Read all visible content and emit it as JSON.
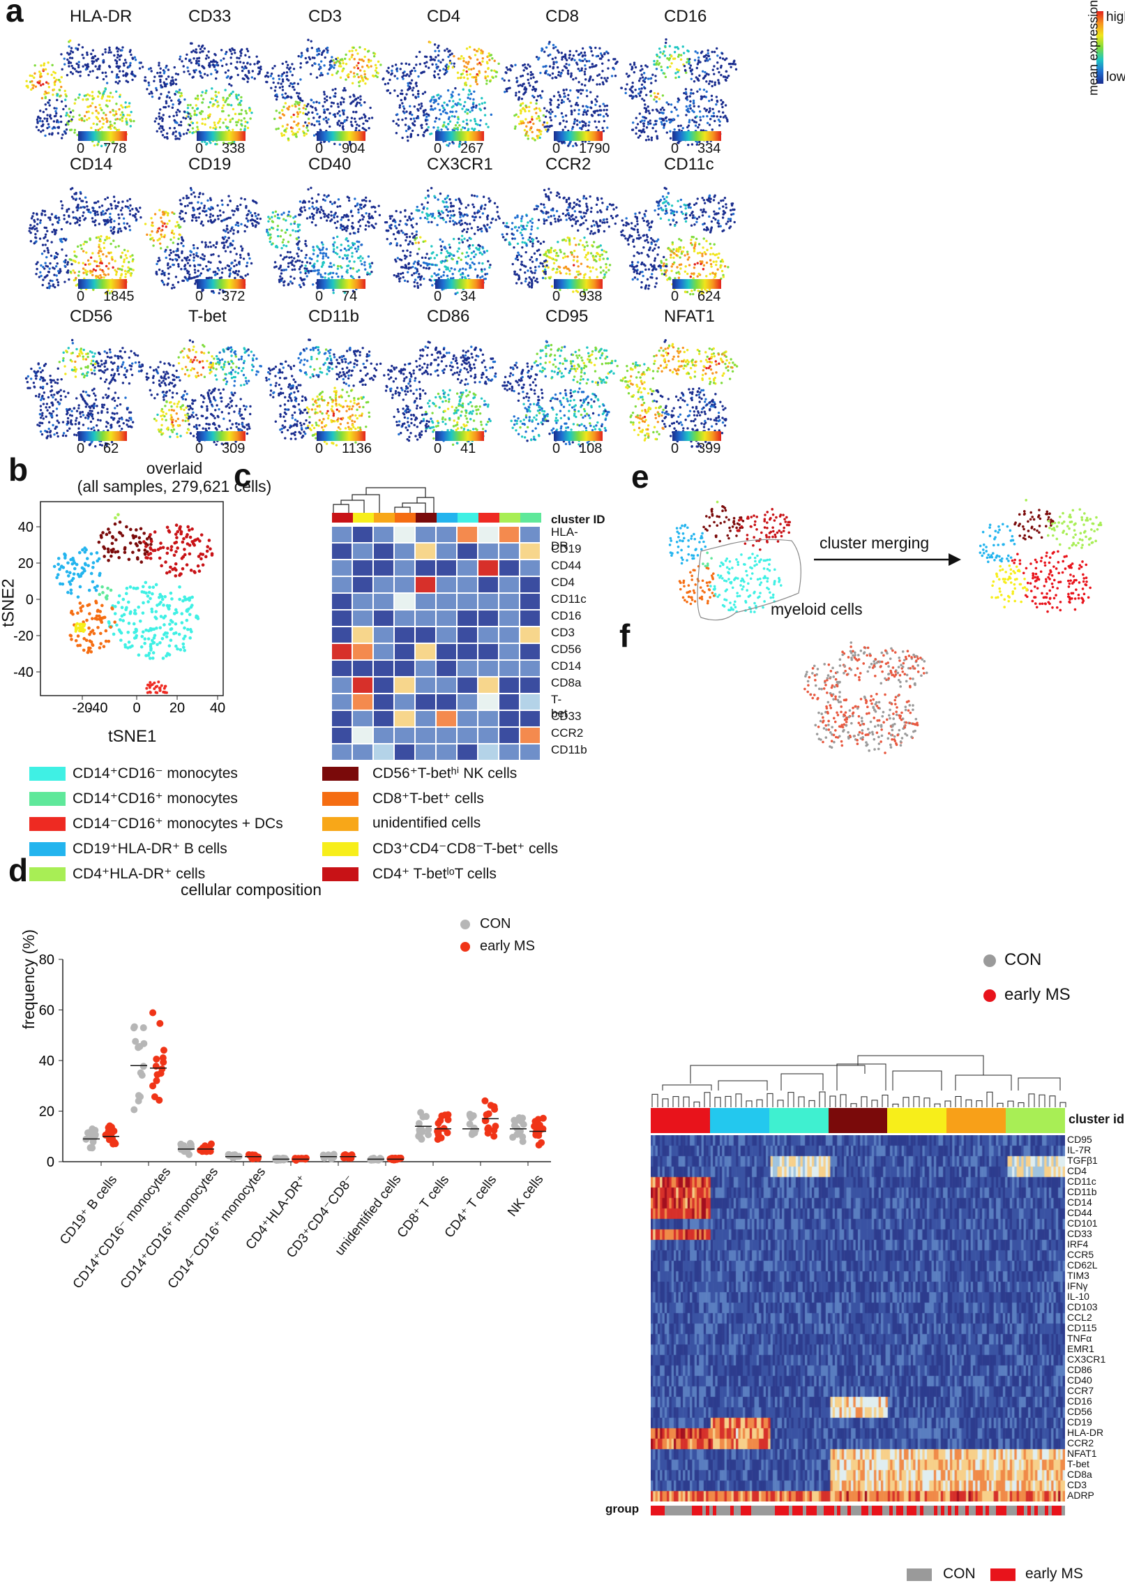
{
  "panel_labels": {
    "a": "a",
    "b": "b",
    "c": "c",
    "d": "d",
    "e": "e",
    "f": "f"
  },
  "panel_a": {
    "markers": [
      {
        "name": "HLA-DR",
        "max": "778"
      },
      {
        "name": "CD33",
        "max": "338"
      },
      {
        "name": "CD3",
        "max": "904"
      },
      {
        "name": "CD4",
        "max": "267"
      },
      {
        "name": "CD8",
        "max": "1790"
      },
      {
        "name": "CD16",
        "max": "334"
      },
      {
        "name": "CD14",
        "max": "1845"
      },
      {
        "name": "CD19",
        "max": "372"
      },
      {
        "name": "CD40",
        "max": "74"
      },
      {
        "name": "CX3CR1",
        "max": "34"
      },
      {
        "name": "CCR2",
        "max": "938"
      },
      {
        "name": "CD11c",
        "max": "624"
      },
      {
        "name": "CD56",
        "max": "62"
      },
      {
        "name": "T-bet",
        "max": "309"
      },
      {
        "name": "CD11b",
        "max": "1136"
      },
      {
        "name": "CD86",
        "max": "41"
      },
      {
        "name": "CD95",
        "max": "108"
      },
      {
        "name": "NFAT1",
        "max": "399"
      }
    ],
    "min_label": "0",
    "colorbar_title": "mean expression",
    "colorbar_high": "high",
    "colorbar_low": "low"
  },
  "panel_b": {
    "title_line1": "overlaid",
    "title_line2": "(all samples, 279,621 cells)",
    "xlabel": "tSNE1",
    "ylabel": "tSNE2",
    "xticks": [
      "-20",
      "-40",
      "0",
      "20",
      "40"
    ],
    "yticks": [
      "40",
      "20",
      "0",
      "-20",
      "-40"
    ]
  },
  "legend": [
    {
      "label": "CD14⁺CD16⁻ monocytes",
      "color": "#3ff0e4"
    },
    {
      "label": "CD14⁺CD16⁺ monocytes",
      "color": "#5fe89a"
    },
    {
      "label": "CD14⁻CD16⁺ monocytes + DCs",
      "color": "#ee2a22"
    },
    {
      "label": "CD19⁺HLA-DR⁺ B cells",
      "color": "#23b4ee"
    },
    {
      "label": "CD4⁺HLA-DR⁺ cells",
      "color": "#a8ee55"
    },
    {
      "label": "CD56⁺T-betʰⁱ NK cells",
      "color": "#7a0a0a"
    },
    {
      "label": "CD8⁺T-bet⁺ cells",
      "color": "#f56d12"
    },
    {
      "label": "unidentified cells",
      "color": "#f8a718"
    },
    {
      "label": "CD3⁺CD4⁻CD8⁻T-bet⁺ cells",
      "color": "#f7ee1a"
    },
    {
      "label": "CD4⁺ T-betˡᵒT cells",
      "color": "#c81216"
    }
  ],
  "panel_c": {
    "header": "cluster ID",
    "cluster_colors": [
      "#c81216",
      "#f7ee1a",
      "#f8a718",
      "#f56d12",
      "#7a0a0a",
      "#23b4ee",
      "#3ff0e4",
      "#ee2a22",
      "#a8ee55",
      "#5fe89a"
    ],
    "rows": [
      "HLA-DR",
      "CD19",
      "CD44",
      "CD4",
      "CD11c",
      "CD16",
      "CD3",
      "CD56",
      "CD14",
      "CD8a",
      "T-bet",
      "CD33",
      "CCR2",
      "CD11b"
    ]
  },
  "panel_d": {
    "title": "cellular composition",
    "ylabel": "frequency (%)",
    "yticks": [
      "0",
      "20",
      "40",
      "60",
      "80"
    ],
    "legend_con": "CON",
    "legend_ms": "early MS",
    "categories": [
      "CD19⁺ B cells",
      "CD14⁺CD16⁻ monocytes",
      "CD14⁺CD16⁺ monocytes",
      "CD14⁻CD16⁺ monocytes",
      "CD4⁺HLA-DR⁺",
      "CD3⁺CD4⁻CD8⁻",
      "unidentified cells",
      "CD8⁺ T cells",
      "CD4⁺ T cells",
      "NK cells"
    ]
  },
  "panel_e": {
    "arrow_label": "cluster merging",
    "myeloid_label": "myeloid cells"
  },
  "panel_f": {
    "legend_con": "CON",
    "legend_ms": "early MS",
    "header": "cluster id",
    "group_label": "group",
    "bottom_con": "CON",
    "bottom_ms": "early MS",
    "rows": [
      "CD95",
      "IL-7R",
      "TGFβ1",
      "CD4",
      "CD11c",
      "CD11b",
      "CD14",
      "CD44",
      "CD101",
      "CD33",
      "IRF4",
      "CCR5",
      "CD62L",
      "TIM3",
      "IFNγ",
      "IL-10",
      "CD103",
      "CCL2",
      "CD115",
      "TNFα",
      "EMR1",
      "CX3CR1",
      "CD86",
      "CD40",
      "CCR7",
      "CD16",
      "CD56",
      "CD19",
      "HLA-DR",
      "CCR2",
      "NFAT1",
      "T-bet",
      "CD8a",
      "CD3",
      "ADRP"
    ]
  },
  "chart_data": [
    {
      "type": "scatter",
      "title": "cellular composition",
      "xlabel": "",
      "ylabel": "frequency (%)",
      "ylim": [
        0,
        80
      ],
      "categories": [
        "CD19⁺ B cells",
        "CD14⁺CD16⁻ monocytes",
        "CD14⁺CD16⁺ monocytes",
        "CD14⁻CD16⁺ monocytes",
        "CD4⁺HLA-DR⁺",
        "CD3⁺CD4⁻CD8⁻",
        "unidentified cells",
        "CD8⁺ T cells",
        "CD4⁺ T cells",
        "NK cells"
      ],
      "series": [
        {
          "name": "CON",
          "median": [
            9,
            38,
            5,
            2,
            1,
            2,
            1,
            14,
            13,
            13
          ]
        },
        {
          "name": "early MS",
          "median": [
            10,
            37,
            5,
            2,
            1,
            2,
            1,
            13,
            17,
            12
          ]
        }
      ]
    }
  ]
}
